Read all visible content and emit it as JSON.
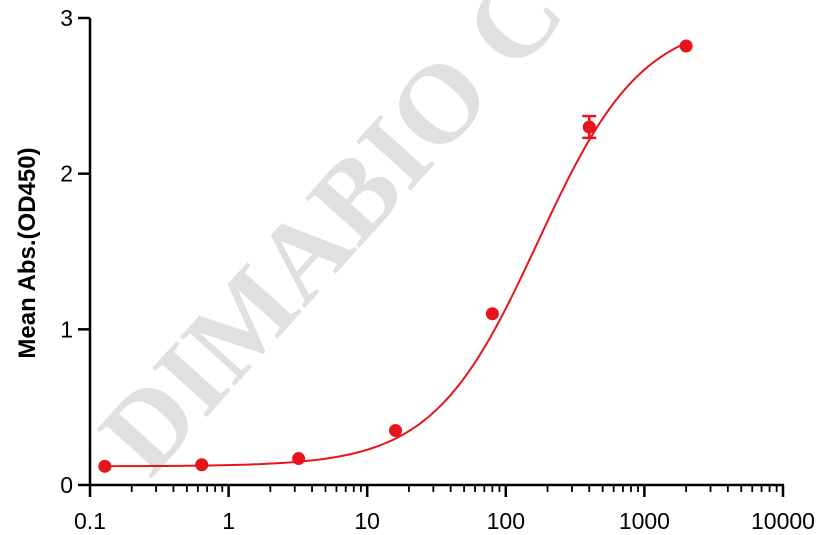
{
  "chart_data": {
    "type": "scatter",
    "title": "",
    "xlabel": "",
    "ylabel": "Mean Abs.(OD450)",
    "x_scale": "log",
    "xlim": [
      0.1,
      10000
    ],
    "ylim": [
      0,
      3
    ],
    "x_ticks": [
      0.1,
      1,
      10,
      100,
      1000,
      10000
    ],
    "x_tick_labels": [
      "0.1",
      "1",
      "10",
      "100",
      "1000",
      "10000"
    ],
    "y_ticks": [
      0,
      1,
      2,
      3
    ],
    "y_tick_labels": [
      "0",
      "1",
      "2",
      "3"
    ],
    "grid": false,
    "legend": "none",
    "series": [
      {
        "color": "#e8141b",
        "x": [
          0.128,
          0.64,
          3.2,
          16,
          80,
          400,
          2000
        ],
        "y": [
          0.12,
          0.13,
          0.17,
          0.35,
          1.1,
          2.3,
          2.82
        ],
        "error": [
          0,
          0,
          0,
          0,
          0,
          0.07,
          0
        ],
        "fit": "4PL sigmoid curve"
      }
    ],
    "watermark": "DIMABIO CO"
  },
  "colors": {
    "series": "#e8141b",
    "axis": "#000000",
    "watermark": "#d6d6d6"
  }
}
